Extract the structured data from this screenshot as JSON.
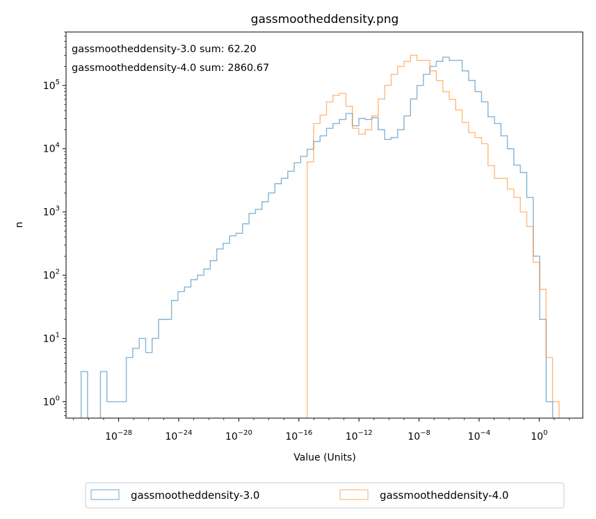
{
  "chart_data": {
    "type": "histogram",
    "title": "gassmootheddensity.png",
    "xlabel": "Value (Units)",
    "ylabel": "n",
    "xscale": "log",
    "yscale": "log",
    "xlim_exp": [
      -31.5,
      2.9
    ],
    "ylim": [
      0.55,
      700000
    ],
    "x_ticks": [
      {
        "base": "10",
        "exp": "−28",
        "value_exp": -28
      },
      {
        "base": "10",
        "exp": "−24",
        "value_exp": -24
      },
      {
        "base": "10",
        "exp": "−20",
        "value_exp": -20
      },
      {
        "base": "10",
        "exp": "−16",
        "value_exp": -16
      },
      {
        "base": "10",
        "exp": "−12",
        "value_exp": -12
      },
      {
        "base": "10",
        "exp": "−8",
        "value_exp": -8
      },
      {
        "base": "10",
        "exp": "−4",
        "value_exp": -4
      },
      {
        "base": "10",
        "exp": "0",
        "value_exp": 0
      }
    ],
    "y_ticks": [
      {
        "base": "10",
        "exp": "0",
        "value_exp": 0
      },
      {
        "base": "10",
        "exp": "1",
        "value_exp": 1
      },
      {
        "base": "10",
        "exp": "2",
        "value_exp": 2
      },
      {
        "base": "10",
        "exp": "3",
        "value_exp": 3
      },
      {
        "base": "10",
        "exp": "4",
        "value_exp": 4
      },
      {
        "base": "10",
        "exp": "5",
        "value_exp": 5
      }
    ],
    "annotations": [
      "gassmootheddensity-3.0 sum: 62.20",
      "gassmootheddensity-4.0 sum: 2860.67"
    ],
    "legend_position": "below",
    "series": [
      {
        "name": "gassmootheddensity-3.0",
        "color": "#1f77b4",
        "bin_edges_exp": [
          -30.5,
          -30.07,
          -29.64,
          -29.21,
          -28.78,
          -28.35,
          -27.92,
          -27.49,
          -27.06,
          -26.63,
          -26.2,
          -25.77,
          -25.34,
          -24.91,
          -24.48,
          -24.05,
          -23.62,
          -23.19,
          -22.76,
          -22.33,
          -21.9,
          -21.47,
          -21.04,
          -20.61,
          -20.18,
          -19.75,
          -19.32,
          -18.89,
          -18.46,
          -18.03,
          -17.6,
          -17.17,
          -16.74,
          -16.31,
          -15.88,
          -15.45,
          -15.02,
          -14.59,
          -14.16,
          -13.73,
          -13.3,
          -12.87,
          -12.44,
          -12.01,
          -11.58,
          -11.15,
          -10.72,
          -10.29,
          -9.86,
          -9.43,
          -9.0,
          -8.57,
          -8.14,
          -7.71,
          -7.28,
          -6.85,
          -6.42,
          -5.99,
          -5.56,
          -5.13,
          -4.7,
          -4.27,
          -3.84,
          -3.41,
          -2.98,
          -2.55,
          -2.12,
          -1.69,
          -1.26,
          -0.83,
          -0.4,
          0.03,
          0.46,
          0.89
        ],
        "counts": [
          3,
          0,
          0,
          3,
          1,
          1,
          1,
          5,
          7,
          10,
          6,
          10,
          20,
          20,
          40,
          55,
          65,
          85,
          100,
          125,
          170,
          260,
          320,
          420,
          460,
          650,
          950,
          1100,
          1450,
          2000,
          2800,
          3400,
          4400,
          6000,
          7600,
          9800,
          13000,
          16000,
          21000,
          25000,
          29000,
          36000,
          23000,
          30000,
          29000,
          31000,
          20000,
          14000,
          15000,
          20000,
          33000,
          61000,
          100000,
          150000,
          200000,
          240000,
          280000,
          250000,
          250000,
          170000,
          120000,
          80000,
          55000,
          32000,
          25000,
          16000,
          10000,
          5500,
          4200,
          1700,
          200,
          20,
          1
        ]
      },
      {
        "name": "gassmootheddensity-4.0",
        "color": "#ff7f0e",
        "bin_edges_exp": [
          -15.45,
          -15.02,
          -14.59,
          -14.16,
          -13.73,
          -13.3,
          -12.87,
          -12.44,
          -12.01,
          -11.58,
          -11.15,
          -10.72,
          -10.29,
          -9.86,
          -9.43,
          -9.0,
          -8.57,
          -8.14,
          -7.71,
          -7.28,
          -6.85,
          -6.42,
          -5.99,
          -5.56,
          -5.13,
          -4.7,
          -4.27,
          -3.84,
          -3.41,
          -2.98,
          -2.55,
          -2.12,
          -1.69,
          -1.26,
          -0.83,
          -0.4,
          0.03,
          0.46,
          0.89,
          1.32,
          1.75
        ],
        "counts": [
          6200,
          25000,
          34000,
          55000,
          70000,
          75000,
          47000,
          21000,
          17000,
          20000,
          33000,
          61000,
          100000,
          150000,
          200000,
          240000,
          300000,
          250000,
          250000,
          170000,
          120000,
          80000,
          60000,
          41000,
          26000,
          18000,
          15000,
          12000,
          5400,
          3400,
          3400,
          2300,
          1700,
          1000,
          590,
          160,
          60,
          5,
          1,
          0.5
        ]
      }
    ]
  }
}
